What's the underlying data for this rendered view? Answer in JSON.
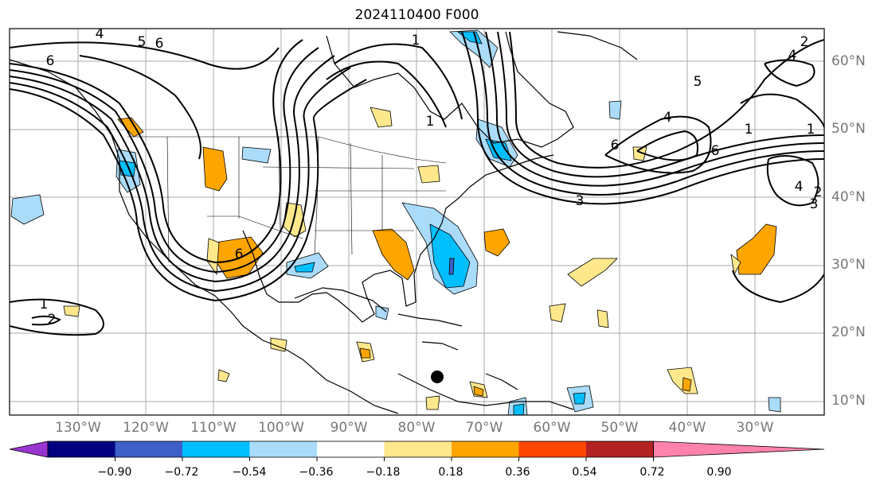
{
  "title": "2024110400 F000",
  "lat_labels": [
    "60°N",
    "50°N",
    "40°N",
    "30°N",
    "20°N",
    "10°N"
  ],
  "lon_labels": [
    "130°W",
    "120°W",
    "110°W",
    "100°W",
    "90°W",
    "80°W",
    "70°W",
    "60°W",
    "50°W",
    "40°W",
    "30°W"
  ],
  "contour_labels": [
    "1",
    "2",
    "3",
    "4",
    "5",
    "6"
  ],
  "colorbar": {
    "ticks": [
      "−0.90",
      "−0.72",
      "−0.54",
      "−0.36",
      "−0.18",
      "0.18",
      "0.36",
      "0.54",
      "0.72",
      "0.90"
    ],
    "colors": [
      "#9a34cf",
      "#000080",
      "#3e5ec8",
      "#00bfff",
      "#aadcfa",
      "#ffffff",
      "#ffe88c",
      "#ffa500",
      "#ff4500",
      "#b22222",
      "#ff82ab"
    ]
  },
  "fill_colors": {
    "light_blue": "#aadcfa",
    "blue": "#00bfff",
    "light_yellow": "#ffe88c",
    "orange": "#ffa500",
    "dark_blue": "#3e5ec8"
  },
  "map_extent": {
    "lon": [
      -140,
      -20
    ],
    "lat": [
      8,
      65
    ]
  },
  "marker": "black-dot"
}
